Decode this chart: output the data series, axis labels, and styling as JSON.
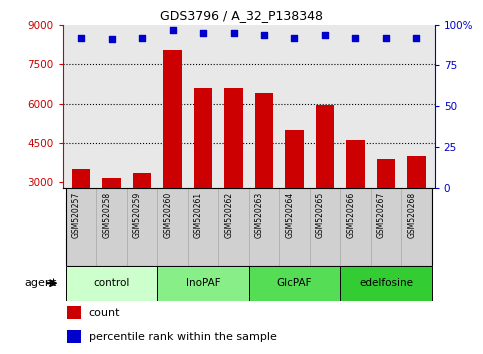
{
  "title": "GDS3796 / A_32_P138348",
  "samples": [
    "GSM520257",
    "GSM520258",
    "GSM520259",
    "GSM520260",
    "GSM520261",
    "GSM520262",
    "GSM520263",
    "GSM520264",
    "GSM520265",
    "GSM520266",
    "GSM520267",
    "GSM520268"
  ],
  "bar_values": [
    3500,
    3150,
    3350,
    8050,
    6600,
    6600,
    6400,
    5000,
    5950,
    4600,
    3900,
    4000
  ],
  "scatter_values": [
    92,
    91,
    92,
    97,
    95,
    95,
    94,
    92,
    94,
    92,
    92,
    92
  ],
  "bar_color": "#cc0000",
  "scatter_color": "#0000cc",
  "ylim_left": [
    2800,
    9000
  ],
  "ylim_right": [
    0,
    100
  ],
  "yticks_left": [
    3000,
    4500,
    6000,
    7500,
    9000
  ],
  "ytick_labels_left": [
    "3000",
    "4500",
    "6000",
    "7500",
    "9000"
  ],
  "yticks_right": [
    0,
    25,
    50,
    75,
    100
  ],
  "ytick_labels_right": [
    "0",
    "25",
    "50",
    "75",
    "100%"
  ],
  "groups": [
    {
      "label": "control",
      "start": 0,
      "end": 3,
      "color": "#ccffcc"
    },
    {
      "label": "InoPAF",
      "start": 3,
      "end": 6,
      "color": "#88ee88"
    },
    {
      "label": "GlcPAF",
      "start": 6,
      "end": 9,
      "color": "#55dd55"
    },
    {
      "label": "edelfosine",
      "start": 9,
      "end": 12,
      "color": "#33cc33"
    }
  ],
  "legend_count_label": "count",
  "legend_pct_label": "percentile rank within the sample",
  "plot_bg_color": "#e8e8e8",
  "cell_bg_color": "#d0d0d0"
}
